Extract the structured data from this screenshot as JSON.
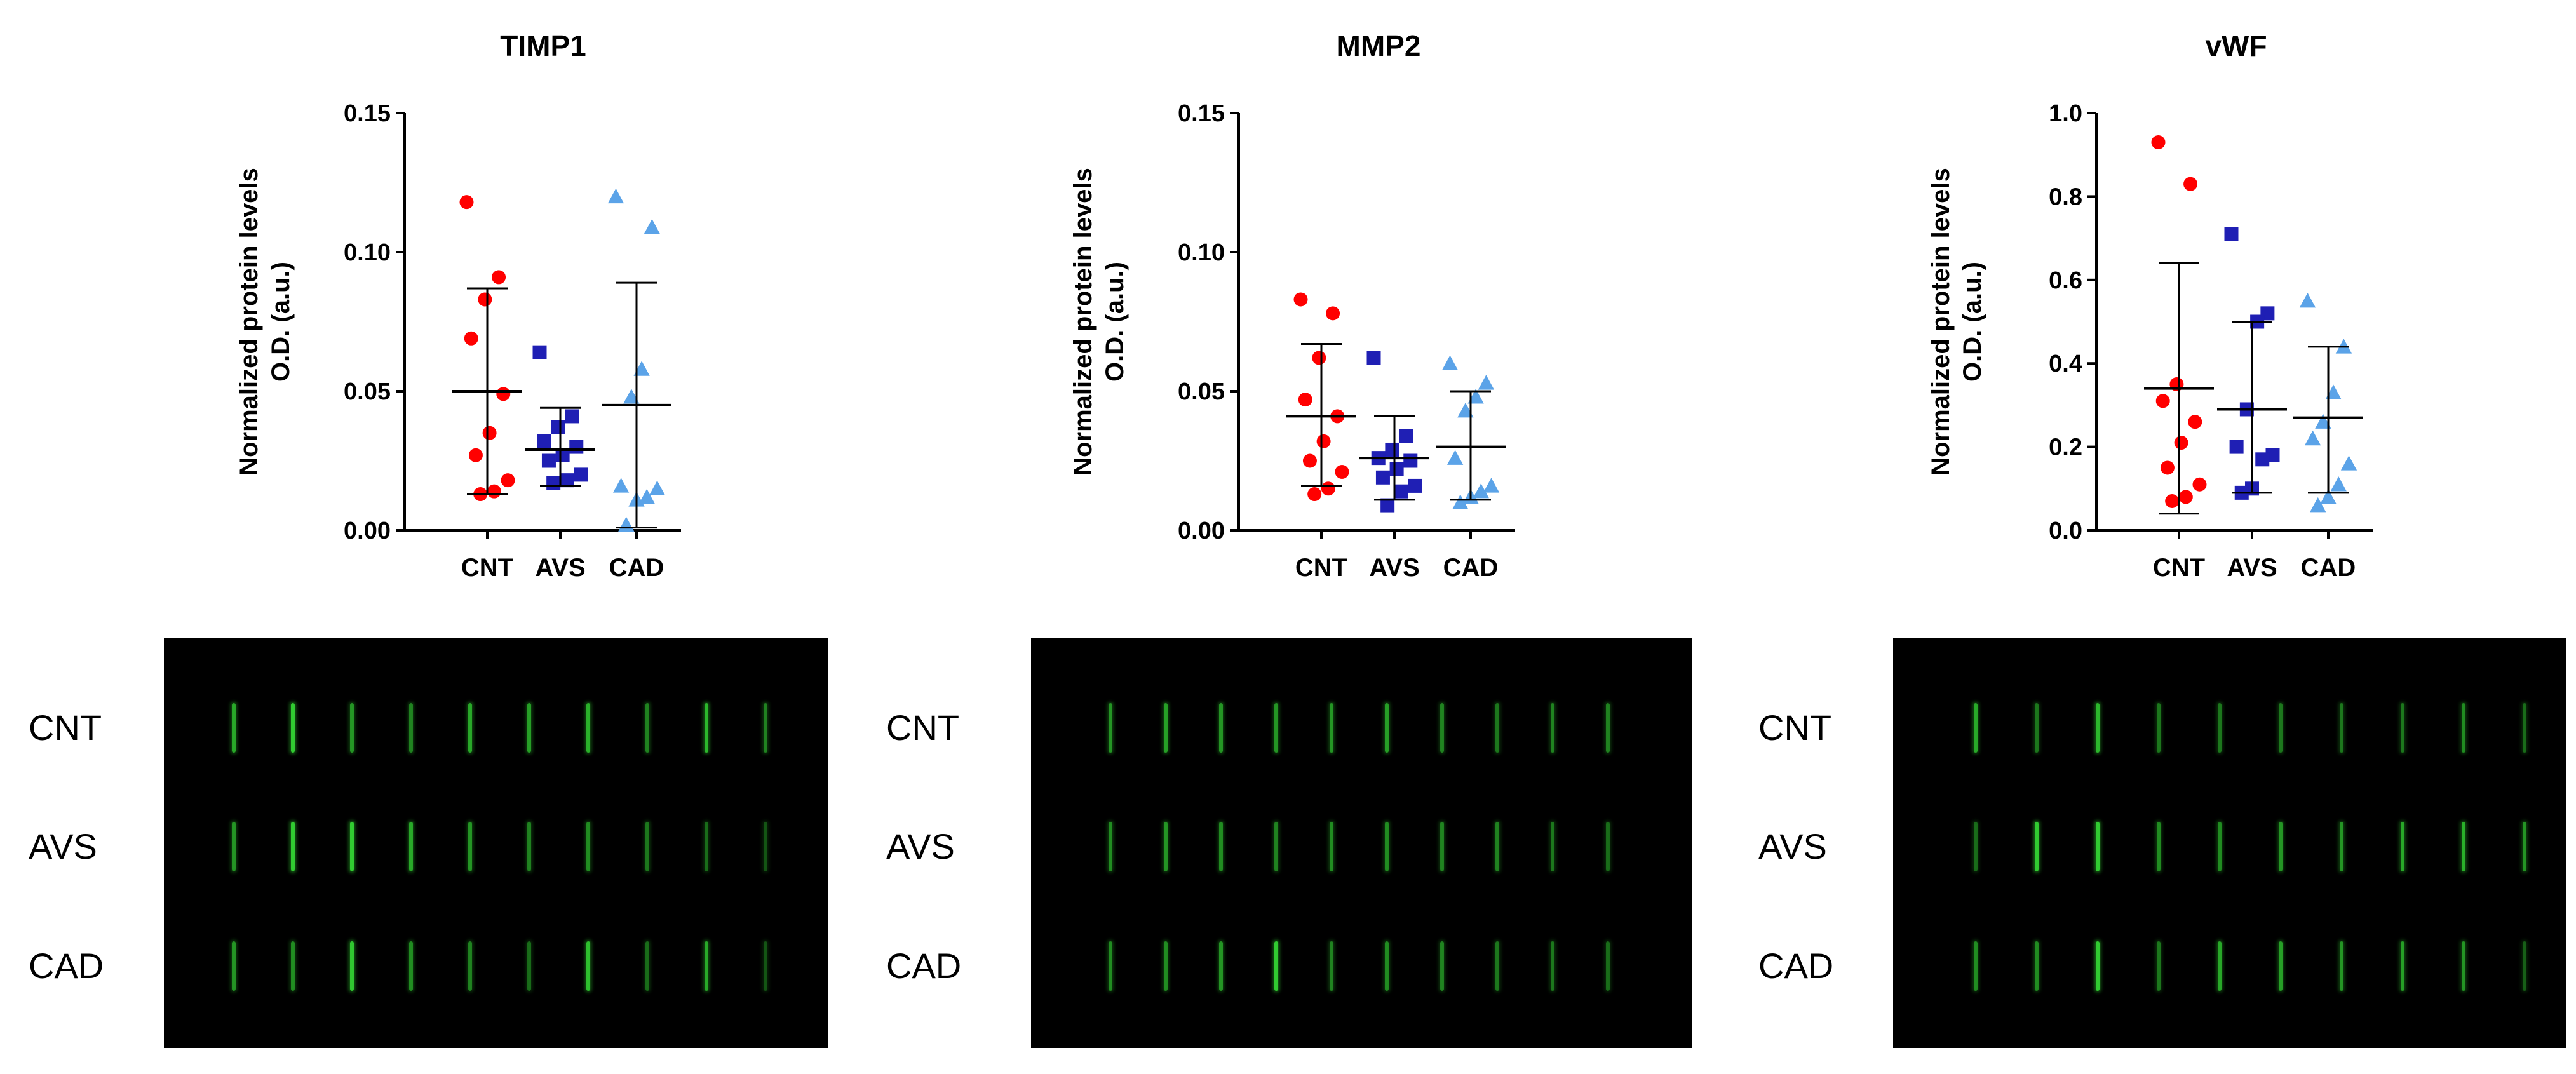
{
  "chart_data": [
    {
      "type": "scatter",
      "title": "TIMP1",
      "ylabel": "Normalized protein levels O.D. (a.u.)",
      "ylabel_lines": [
        "Normalized protein levels",
        "O.D. (a.u.)"
      ],
      "ylim": [
        0,
        0.15
      ],
      "yticks": [
        "0.00",
        "0.05",
        "0.10",
        "0.15"
      ],
      "categories": [
        "CNT",
        "AVS",
        "CAD"
      ],
      "series": [
        {
          "category": "CNT",
          "marker": "circle",
          "color": "#ff0000",
          "values": [
            0.118,
            0.091,
            0.083,
            0.069,
            0.049,
            0.035,
            0.027,
            0.018,
            0.014,
            0.013
          ],
          "mean": 0.05,
          "sd_low": 0.013,
          "sd_high": 0.087
        },
        {
          "category": "AVS",
          "marker": "square",
          "color": "#1f1fb4",
          "values": [
            0.064,
            0.041,
            0.037,
            0.032,
            0.03,
            0.027,
            0.025,
            0.02,
            0.018,
            0.017
          ],
          "mean": 0.029,
          "sd_low": 0.016,
          "sd_high": 0.044
        },
        {
          "category": "CAD",
          "marker": "triangle",
          "color": "#5ba3e8",
          "values": [
            0.12,
            0.109,
            0.058,
            0.048,
            0.016,
            0.015,
            0.012,
            0.011,
            0.002
          ],
          "mean": 0.045,
          "sd_low": 0.001,
          "sd_high": 0.089
        }
      ]
    },
    {
      "type": "scatter",
      "title": "MMP2",
      "ylabel": "Normalized protein levels O.D. (a.u.)",
      "ylabel_lines": [
        "Normalized protein levels",
        "O.D. (a.u.)"
      ],
      "ylim": [
        0,
        0.15
      ],
      "yticks": [
        "0.00",
        "0.05",
        "0.10",
        "0.15"
      ],
      "categories": [
        "CNT",
        "AVS",
        "CAD"
      ],
      "series": [
        {
          "category": "CNT",
          "marker": "circle",
          "color": "#ff0000",
          "values": [
            0.083,
            0.078,
            0.062,
            0.047,
            0.041,
            0.032,
            0.025,
            0.021,
            0.015,
            0.013
          ],
          "mean": 0.041,
          "sd_low": 0.016,
          "sd_high": 0.067
        },
        {
          "category": "AVS",
          "marker": "square",
          "color": "#1f1fb4",
          "values": [
            0.062,
            0.034,
            0.029,
            0.026,
            0.025,
            0.022,
            0.019,
            0.016,
            0.014,
            0.009
          ],
          "mean": 0.026,
          "sd_low": 0.011,
          "sd_high": 0.041
        },
        {
          "category": "CAD",
          "marker": "triangle",
          "color": "#5ba3e8",
          "values": [
            0.06,
            0.053,
            0.048,
            0.043,
            0.026,
            0.016,
            0.014,
            0.012,
            0.01
          ],
          "mean": 0.03,
          "sd_low": 0.011,
          "sd_high": 0.05
        }
      ]
    },
    {
      "type": "scatter",
      "title": "vWF",
      "ylabel": "Normalized protein levels O.D. (a.u.)",
      "ylabel_lines": [
        "Normalized protein levels",
        "O.D. (a.u.)"
      ],
      "ylim": [
        0,
        1.0
      ],
      "yticks": [
        "0.0",
        "0.2",
        "0.4",
        "0.6",
        "0.8",
        "1.0"
      ],
      "categories": [
        "CNT",
        "AVS",
        "CAD"
      ],
      "series": [
        {
          "category": "CNT",
          "marker": "circle",
          "color": "#ff0000",
          "values": [
            0.93,
            0.83,
            0.35,
            0.31,
            0.26,
            0.21,
            0.15,
            0.11,
            0.08,
            0.07
          ],
          "mean": 0.34,
          "sd_low": 0.04,
          "sd_high": 0.64
        },
        {
          "category": "AVS",
          "marker": "square",
          "color": "#1f1fb4",
          "values": [
            0.71,
            0.52,
            0.5,
            0.29,
            0.2,
            0.18,
            0.17,
            0.1,
            0.09
          ],
          "mean": 0.29,
          "sd_low": 0.09,
          "sd_high": 0.5
        },
        {
          "category": "CAD",
          "marker": "triangle",
          "color": "#5ba3e8",
          "values": [
            0.55,
            0.44,
            0.33,
            0.26,
            0.22,
            0.16,
            0.11,
            0.08,
            0.06
          ],
          "mean": 0.27,
          "sd_low": 0.09,
          "sd_high": 0.44
        }
      ]
    }
  ],
  "blots": [
    {
      "panel": "TIMP1",
      "row_labels": [
        "CNT",
        "AVS",
        "CAD"
      ],
      "background": "#000000",
      "band_color": "#33d133"
    },
    {
      "panel": "MMP2",
      "row_labels": [
        "CNT",
        "AVS",
        "CAD"
      ],
      "background": "#000000",
      "band_color": "#33d133"
    },
    {
      "panel": "vWF",
      "row_labels": [
        "CNT",
        "AVS",
        "CAD"
      ],
      "background": "#000000",
      "band_color": "#33d133"
    }
  ]
}
